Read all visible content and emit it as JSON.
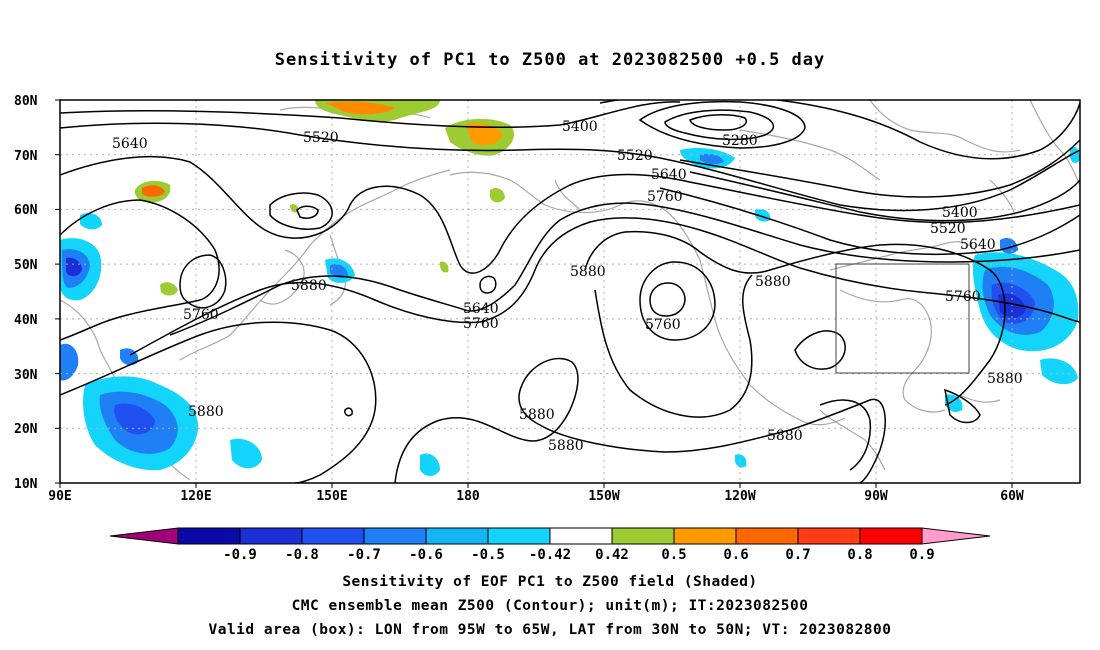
{
  "title": "Sensitivity of PC1 to Z500 at 2023082500 +0.5 day",
  "map": {
    "lat_ticks": [
      "80N",
      "70N",
      "60N",
      "50N",
      "40N",
      "30N",
      "20N",
      "10N"
    ],
    "lon_ticks": [
      "90E",
      "120E",
      "150E",
      "180",
      "150W",
      "120W",
      "90W",
      "60W"
    ],
    "valid_box": {
      "lon_from": "95W",
      "lon_to": "65W",
      "lat_from": "30N",
      "lat_to": "50N"
    }
  },
  "contour_labels": [
    "5640",
    "5520",
    "5400",
    "5280",
    "5520",
    "5640",
    "5760",
    "5400",
    "5520",
    "5640",
    "5760",
    "5880",
    "5880",
    "5760",
    "5640",
    "5760",
    "5760",
    "5880",
    "5880",
    "5880",
    "5880",
    "5880",
    "5880"
  ],
  "colorbar": {
    "ticks": [
      "-0.9",
      "-0.8",
      "-0.7",
      "-0.6",
      "-0.5",
      "-0.42",
      "0.42",
      "0.5",
      "0.6",
      "0.7",
      "0.8",
      "0.9"
    ],
    "colors": [
      "#a0007a",
      "#0a0aa8",
      "#1a2fd6",
      "#2050f0",
      "#1f80f5",
      "#14b4f5",
      "#13d4fa",
      "#ffffff",
      "#9ccc32",
      "#ff9a00",
      "#ff6800",
      "#ff3c14",
      "#ff0000",
      "#ff9ccc"
    ]
  },
  "footer": {
    "line1": "Sensitivity of EOF PC1 to Z500 field (Shaded)",
    "line2": "CMC ensemble mean Z500 (Contour); unit(m); IT:2023082500",
    "line3": "Valid area (box): LON from 95W to 65W, LAT from 30N to 50N; VT: 2023082800"
  }
}
